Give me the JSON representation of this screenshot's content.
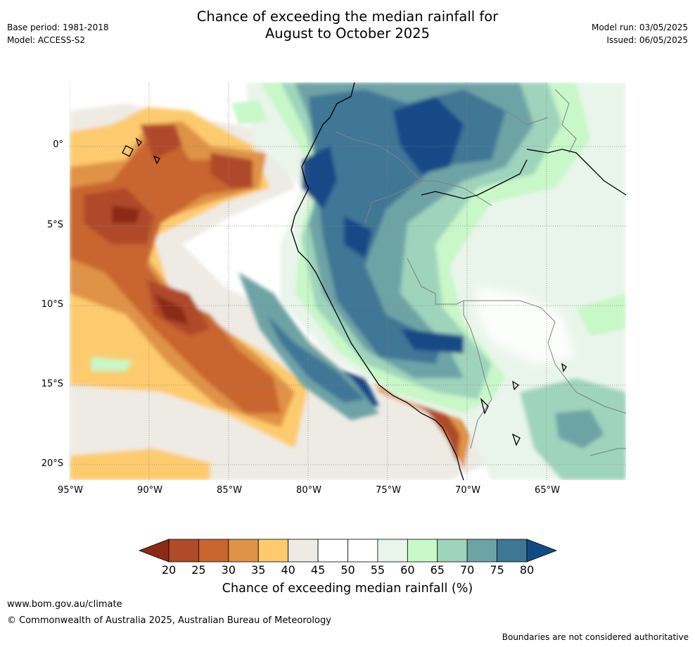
{
  "title": {
    "line1": "Chance of exceeding the median rainfall for",
    "line2": "August to October 2025"
  },
  "meta_left": {
    "base_period": "Base period: 1981-2018",
    "model": "Model: ACCESS-S2"
  },
  "meta_right": {
    "model_run": "Model run: 03/05/2025",
    "issued": "Issued: 06/05/2025"
  },
  "map": {
    "lat_labels": [
      "0°",
      "5°S",
      "10°S",
      "15°S",
      "20°S"
    ],
    "lon_labels": [
      "95°W",
      "90°W",
      "85°W",
      "80°W",
      "75°W",
      "70°W",
      "65°W"
    ],
    "lon_range": [
      -95,
      -60
    ],
    "lat_range": [
      -21,
      4
    ]
  },
  "colorbar": {
    "ticks": [
      "20",
      "25",
      "30",
      "35",
      "40",
      "45",
      "50",
      "55",
      "60",
      "65",
      "70",
      "75",
      "80"
    ],
    "colors": [
      "#8b2b16",
      "#b04a29",
      "#c9652f",
      "#df9347",
      "#fdcb6e",
      "#eeebe4",
      "#ffffff",
      "#ffffff",
      "#e9f5ea",
      "#c8f7c8",
      "#9ed4bb",
      "#6ea3a6",
      "#3f7696",
      "#124a86"
    ],
    "label": "Chance of exceeding median rainfall (%)"
  },
  "footer": {
    "url": "www.bom.gov.au/climate",
    "copyright": "© Commonwealth of Australia 2025, Australian Bureau of Meteorology",
    "note": "Boundaries are not considered authoritative"
  }
}
